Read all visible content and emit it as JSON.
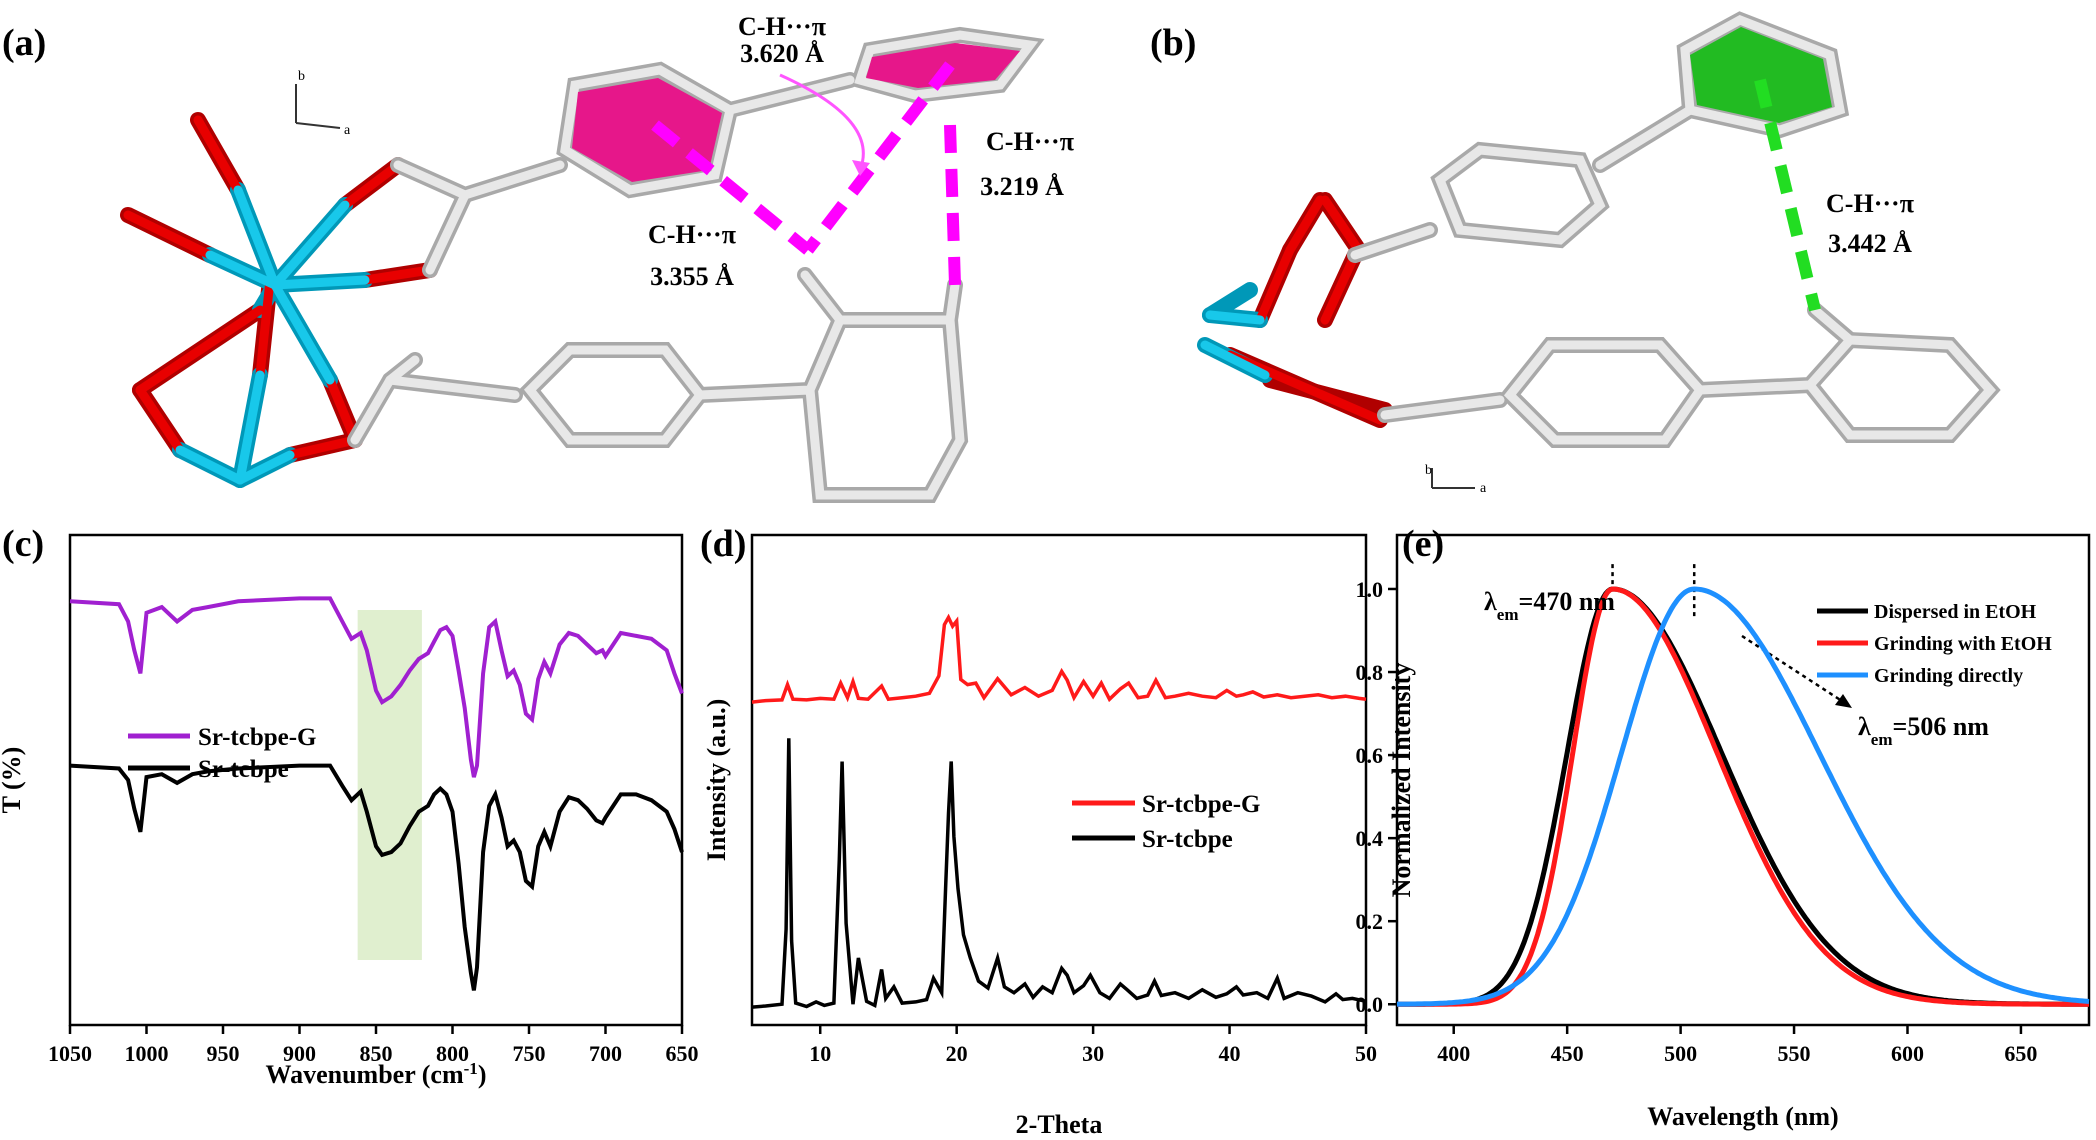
{
  "panels": {
    "a": {
      "label": "(a)",
      "axis_b": "b",
      "axis_a": "a",
      "contacts": [
        {
          "type": "C-H···π",
          "distance": "3.620 Å"
        },
        {
          "type": "C-H···π",
          "distance": "3.219 Å"
        },
        {
          "type": "C-H···π",
          "distance": "3.355 Å"
        }
      ]
    },
    "b": {
      "label": "(b)",
      "axis_b": "b",
      "axis_a": "a",
      "contacts": [
        {
          "type": "C-H···π",
          "distance": "3.442 Å"
        }
      ]
    }
  },
  "chart_data": [
    {
      "panel_label": "(c)",
      "type": "line",
      "xlabel_main": "Wavenumber (cm",
      "xlabel_sup": "-1",
      "xlabel_end": ")",
      "ylabel": "T (%)",
      "xlim": [
        1050,
        650
      ],
      "xticks": [
        "1050",
        "1000",
        "950",
        "900",
        "850",
        "800",
        "750",
        "700",
        "650"
      ],
      "highlight_range": [
        862,
        820
      ],
      "highlight_color": "#e0efcf",
      "series": [
        {
          "name": "Sr-tcbpe-G",
          "color": "#a020d0",
          "x": [
            1050,
            1018,
            1012,
            1008,
            1004,
            1000,
            990,
            980,
            970,
            960,
            940,
            900,
            880,
            872,
            866,
            860,
            856,
            850,
            846,
            840,
            834,
            828,
            822,
            816,
            812,
            808,
            804,
            800,
            796,
            792,
            788,
            786,
            784,
            780,
            776,
            772,
            768,
            764,
            760,
            756,
            752,
            748,
            744,
            740,
            736,
            730,
            724,
            718,
            712,
            706,
            702,
            700,
            690,
            680,
            670,
            660,
            655,
            650
          ],
          "y": [
            97,
            96,
            90,
            80,
            72,
            93,
            95,
            90,
            94,
            95,
            97,
            98,
            98,
            90,
            84,
            86,
            80,
            66,
            62,
            64,
            68,
            73,
            77,
            79,
            83,
            87,
            88,
            85,
            73,
            60,
            42,
            36,
            40,
            72,
            88,
            90,
            80,
            71,
            73,
            68,
            58,
            56,
            70,
            76,
            72,
            82,
            86,
            85,
            82,
            79,
            80,
            78,
            86,
            85,
            84,
            80,
            72,
            65
          ]
        },
        {
          "name": "Sr-tcbpe",
          "color": "#000000",
          "x": [
            1050,
            1018,
            1012,
            1008,
            1004,
            1000,
            990,
            980,
            970,
            960,
            940,
            900,
            880,
            872,
            866,
            860,
            856,
            850,
            846,
            840,
            834,
            828,
            822,
            816,
            812,
            808,
            804,
            800,
            796,
            792,
            788,
            786,
            784,
            780,
            776,
            772,
            768,
            764,
            760,
            756,
            752,
            748,
            744,
            740,
            736,
            730,
            724,
            718,
            712,
            706,
            702,
            700,
            690,
            680,
            670,
            660,
            655,
            650
          ],
          "y": [
            40,
            39,
            35,
            25,
            17,
            36,
            37,
            34,
            37,
            38,
            39,
            40,
            40,
            33,
            28,
            31,
            24,
            12,
            9,
            10,
            13,
            19,
            24,
            26,
            30,
            32,
            30,
            24,
            6,
            -16,
            -32,
            -38,
            -30,
            10,
            26,
            30,
            22,
            12,
            14,
            10,
            0,
            -2,
            12,
            17,
            12,
            24,
            29,
            28,
            25,
            21,
            20,
            22,
            30,
            30,
            28,
            24,
            18,
            10
          ]
        }
      ],
      "legend_position": "left"
    },
    {
      "panel_label": "(d)",
      "type": "line",
      "xlabel": "2-Theta",
      "ylabel": "Intensity (a.u.)",
      "xlim": [
        5,
        50
      ],
      "xticks": [
        "10",
        "20",
        "30",
        "40",
        "50"
      ],
      "series": [
        {
          "name": "Sr-tcbpe-G",
          "color": "#ff1a1a",
          "x": [
            5,
            6,
            7.2,
            7.6,
            8,
            9,
            10,
            11,
            11.5,
            12,
            12.4,
            12.8,
            13.5,
            14.5,
            15,
            16,
            17,
            18,
            18.7,
            19.1,
            19.4,
            19.7,
            20,
            20.3,
            20.8,
            21.4,
            22,
            23,
            24,
            25,
            26,
            27,
            27.7,
            28.1,
            28.6,
            29.3,
            30,
            30.6,
            31.2,
            32,
            32.6,
            33.3,
            34,
            34.6,
            35.3,
            36,
            37,
            38,
            39,
            39.8,
            40.5,
            41,
            41.7,
            42.5,
            43.5,
            44.5,
            45.5,
            46.5,
            47.5,
            48.5,
            49.5,
            50
          ],
          "y": [
            4,
            6,
            7,
            28,
            8,
            7,
            9,
            8,
            30,
            10,
            32,
            9,
            8,
            26,
            8,
            10,
            12,
            16,
            40,
            110,
            120,
            108,
            115,
            35,
            28,
            30,
            10,
            36,
            14,
            24,
            12,
            20,
            46,
            34,
            10,
            32,
            12,
            30,
            8,
            22,
            30,
            10,
            12,
            34,
            10,
            12,
            16,
            12,
            10,
            20,
            12,
            14,
            18,
            11,
            14,
            10,
            12,
            14,
            10,
            12,
            9,
            8
          ]
        },
        {
          "name": "Sr-tcbpe",
          "color": "#000000",
          "x": [
            5,
            6,
            7.2,
            7.5,
            7.7,
            7.9,
            8.2,
            9,
            9.7,
            10.3,
            11,
            11.4,
            11.6,
            11.9,
            12.4,
            12.8,
            13.4,
            14,
            14.5,
            14.8,
            15.4,
            16,
            17,
            17.8,
            18.3,
            18.9,
            19.2,
            19.4,
            19.6,
            19.8,
            20.1,
            20.5,
            21,
            21.6,
            22.3,
            23,
            23.5,
            24.2,
            25,
            25.6,
            26.3,
            27,
            27.7,
            28.1,
            28.6,
            29.3,
            29.8,
            30.5,
            31.2,
            32,
            32.5,
            33.2,
            34,
            34.5,
            35,
            36,
            37,
            38,
            39,
            39.8,
            40.5,
            41,
            42,
            42.8,
            43.5,
            44,
            45,
            46,
            47,
            47.8,
            48.3,
            49,
            50
          ],
          "y": [
            5,
            7,
            10,
            140,
            470,
            120,
            12,
            6,
            14,
            8,
            12,
            260,
            430,
            150,
            10,
            90,
            15,
            8,
            70,
            20,
            40,
            12,
            14,
            18,
            55,
            30,
            220,
            340,
            430,
            300,
            210,
            130,
            90,
            50,
            38,
            90,
            40,
            30,
            45,
            22,
            40,
            30,
            72,
            60,
            30,
            42,
            60,
            30,
            20,
            45,
            35,
            20,
            26,
            50,
            25,
            30,
            20,
            35,
            22,
            28,
            40,
            26,
            30,
            20,
            55,
            20,
            30,
            24,
            14,
            28,
            18,
            20,
            15
          ]
        }
      ],
      "legend_position": "right"
    },
    {
      "panel_label": "(e)",
      "type": "line",
      "xlabel": "Wavelength (nm)",
      "ylabel": "Normalized Intensity",
      "xlim": [
        375,
        680
      ],
      "ylim": [
        -0.05,
        1.13
      ],
      "xticks": [
        "400",
        "450",
        "500",
        "550",
        "600",
        "650"
      ],
      "yticks": [
        "0.0",
        "0.2",
        "0.4",
        "0.6",
        "0.8",
        "1.0"
      ],
      "peak1_lambda": "λ",
      "peak1_sub": "em",
      "peak1_value": "=470 nm",
      "peak2_lambda": "λ",
      "peak2_sub": "em",
      "peak2_value": "=506 nm",
      "series": [
        {
          "name": "Dispersed in EtOH",
          "color": "#000000",
          "peak": 470,
          "sigma_left": 20,
          "sigma_right": 48
        },
        {
          "name": "Grinding with EtOH",
          "color": "#ff1a1a",
          "peak": 470,
          "sigma_left": 17.5,
          "sigma_right": 46
        },
        {
          "name": "Grinding directly",
          "color": "#1e90ff",
          "peak": 506,
          "sigma_left": 32,
          "sigma_right": 55
        }
      ],
      "legend_position": "top-right"
    }
  ]
}
